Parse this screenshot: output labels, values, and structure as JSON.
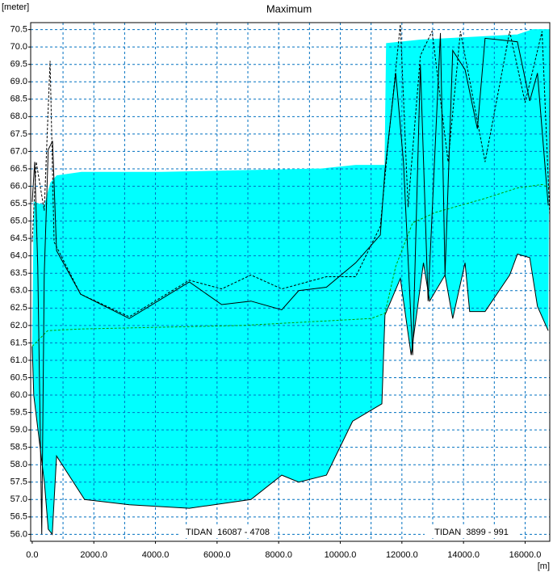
{
  "chart_data": {
    "type": "line",
    "title": "Maximum",
    "y_unit": "[meter]",
    "x_unit": "[m]",
    "annotations": [
      "TIDAN  16087 - 4708",
      "TIDAN  3899 - 991"
    ],
    "xlim": [
      -50,
      16800
    ],
    "ylim": [
      55.8,
      70.7
    ],
    "xticks": [
      {
        "value": 0,
        "label": "0.0"
      },
      {
        "value": 2000,
        "label": "2000.0"
      },
      {
        "value": 4000,
        "label": "4000.0"
      },
      {
        "value": 6000,
        "label": "6000.0"
      },
      {
        "value": 8000,
        "label": "8000.0"
      },
      {
        "value": 10000,
        "label": "10000.0"
      },
      {
        "value": 12000,
        "label": "12000.0"
      },
      {
        "value": 14000,
        "label": "14000.0"
      },
      {
        "value": 16000,
        "label": "16000.0"
      }
    ],
    "xgrid": [
      1000,
      2000,
      3000,
      4000,
      5000,
      6000,
      7000,
      8000,
      9000,
      10000,
      11000,
      12000,
      13000,
      14000,
      15000,
      16000
    ],
    "yticks": [
      {
        "value": 56,
        "label": "56.0"
      },
      56.5,
      {
        "value": 57,
        "label": "57.0"
      },
      57.5,
      {
        "value": 58,
        "label": "58.0"
      },
      58.5,
      {
        "value": 59,
        "label": "59.0"
      },
      59.5,
      {
        "value": 60,
        "label": "60.0"
      },
      60.5,
      {
        "value": 61,
        "label": "61.0"
      },
      61.5,
      {
        "value": 62,
        "label": "62.0"
      },
      62.5,
      {
        "value": 63,
        "label": "63.0"
      },
      63.5,
      {
        "value": 64,
        "label": "64.0"
      },
      64.5,
      {
        "value": 65,
        "label": "65.0"
      },
      65.5,
      {
        "value": 66,
        "label": "66.0"
      },
      66.5,
      {
        "value": 67,
        "label": "67.0"
      },
      67.5,
      {
        "value": 68,
        "label": "68.0"
      },
      68.5,
      {
        "value": 69,
        "label": "69.0"
      },
      69.5,
      {
        "value": 70,
        "label": "70.0"
      },
      70.5
    ],
    "grid": true,
    "grid_color": "#0070c0",
    "fill": "#00ffff",
    "series": [
      {
        "color": "#00ffff",
        "dash": false,
        "x": [
          50,
          200,
          400,
          600,
          800,
          1600,
          4200,
          6800,
          9400,
          10500,
          11300,
          11450,
          11500,
          12600,
          14700,
          15750,
          16250,
          16800
        ],
        "values": [
          65.55,
          65.5,
          65.45,
          66.1,
          66.3,
          66.4,
          66.4,
          66.45,
          66.5,
          66.6,
          66.6,
          66.6,
          70.1,
          70.2,
          70.3,
          70.35,
          70.5,
          70.5
        ]
      },
      {
        "color": "#000000",
        "dash": false,
        "x": [
          0,
          50,
          400,
          520,
          650,
          790,
          1700,
          3150,
          5100,
          7100,
          8100,
          8650,
          9550,
          10400,
          11350,
          11450,
          11950,
          12300,
          12700,
          12900,
          13400,
          13650,
          14050,
          14200,
          14700,
          15500,
          15750,
          16150,
          16400,
          16750
        ],
        "values": [
          61.4,
          60.0,
          57.45,
          56.15,
          56.0,
          58.25,
          57.0,
          56.85,
          56.75,
          57.0,
          57.7,
          57.5,
          57.7,
          59.25,
          59.75,
          62.3,
          63.35,
          61.15,
          63.8,
          62.7,
          63.45,
          62.2,
          63.8,
          62.4,
          62.4,
          63.45,
          64.05,
          63.95,
          62.55,
          61.85
        ]
      },
      {
        "color": "#00a000",
        "dash": true,
        "x": [
          0,
          500,
          1600,
          6800,
          11000,
          11450,
          11800,
          12350,
          13100,
          14700,
          15750,
          16550,
          16800
        ],
        "values": [
          61.4,
          61.85,
          61.9,
          62.0,
          62.2,
          62.35,
          63.7,
          64.95,
          65.25,
          65.65,
          65.95,
          66.05,
          65.95
        ]
      },
      {
        "color": "#000000",
        "dash": false,
        "x": [
          0,
          80,
          180,
          310,
          390,
          520,
          660,
          790,
          1570,
          3150,
          5100,
          6150,
          7100,
          8100,
          8650,
          9550,
          10500,
          11300,
          11450,
          11800,
          12050,
          12350,
          12600,
          12850,
          13250,
          13400,
          13650,
          14050,
          14450,
          14700,
          15750,
          16150,
          16400,
          16750
        ],
        "values": [
          65.55,
          66.7,
          63.7,
          56.0,
          63.45,
          67.05,
          67.3,
          64.15,
          62.9,
          62.2,
          63.25,
          62.6,
          62.7,
          62.45,
          63.0,
          63.1,
          63.8,
          64.6,
          66.45,
          69.25,
          66.7,
          61.15,
          69.5,
          62.7,
          70.4,
          63.45,
          69.9,
          69.35,
          67.65,
          70.25,
          70.15,
          68.45,
          69.25,
          65.45
        ]
      },
      {
        "color": "#000000",
        "dash": true,
        "x": [
          0,
          130,
          390,
          580,
          710,
          1570,
          3150,
          5100,
          6150,
          7100,
          8100,
          9550,
          10500,
          11300,
          11550,
          11950,
          12200,
          12600,
          12980,
          13500,
          13900,
          14700,
          15500,
          16000,
          16550,
          16800
        ],
        "values": [
          64.4,
          66.7,
          65.3,
          69.6,
          64.4,
          62.9,
          62.25,
          63.3,
          63.05,
          63.45,
          63.05,
          63.4,
          63.4,
          64.85,
          67.2,
          70.65,
          65.4,
          69.75,
          70.45,
          66.7,
          70.45,
          66.7,
          70.45,
          68.4,
          70.45,
          65.15
        ]
      }
    ]
  }
}
